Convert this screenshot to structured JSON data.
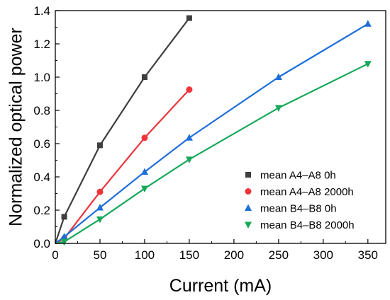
{
  "chart_data": {
    "type": "line",
    "title": "",
    "xlabel": "Current (mA)",
    "ylabel": "Normalized optical power",
    "xlim": [
      0,
      370
    ],
    "ylim": [
      0,
      1.4
    ],
    "xticks": [
      0,
      50,
      100,
      150,
      200,
      250,
      300,
      350
    ],
    "yticks": [
      0.0,
      0.2,
      0.4,
      0.6,
      0.8,
      1.0,
      1.2,
      1.4
    ],
    "xtick_labels": [
      "0",
      "50",
      "100",
      "150",
      "200",
      "250",
      "300",
      "350"
    ],
    "ytick_labels": [
      "0.0",
      "0.2",
      "0.4",
      "0.6",
      "0.8",
      "1.0",
      "1.2",
      "1.4"
    ],
    "grid": false,
    "legend_position": "bottom-right",
    "series": [
      {
        "name": "mean A4–A8 0h",
        "color": "#3f3f3f",
        "marker": "square",
        "x": [
          0,
          10,
          50,
          100,
          150
        ],
        "y": [
          0.0,
          0.16,
          0.59,
          1.0,
          1.355
        ]
      },
      {
        "name": "mean A4–A8 2000h",
        "color": "#f0343c",
        "marker": "circle",
        "x": [
          0,
          10,
          50,
          100,
          150
        ],
        "y": [
          0.0,
          0.03,
          0.31,
          0.635,
          0.925
        ]
      },
      {
        "name": "mean B4–B8 0h",
        "color": "#1e6fd9",
        "marker": "triangle-up",
        "x": [
          0,
          10,
          50,
          100,
          150,
          250,
          350
        ],
        "y": [
          0.0,
          0.04,
          0.215,
          0.43,
          0.635,
          1.0,
          1.32
        ]
      },
      {
        "name": "mean B4–B8 2000h",
        "color": "#17a85a",
        "marker": "triangle-down",
        "x": [
          0,
          10,
          50,
          100,
          150,
          250,
          350
        ],
        "y": [
          0.0,
          0.01,
          0.145,
          0.33,
          0.505,
          0.815,
          1.08
        ]
      }
    ]
  }
}
